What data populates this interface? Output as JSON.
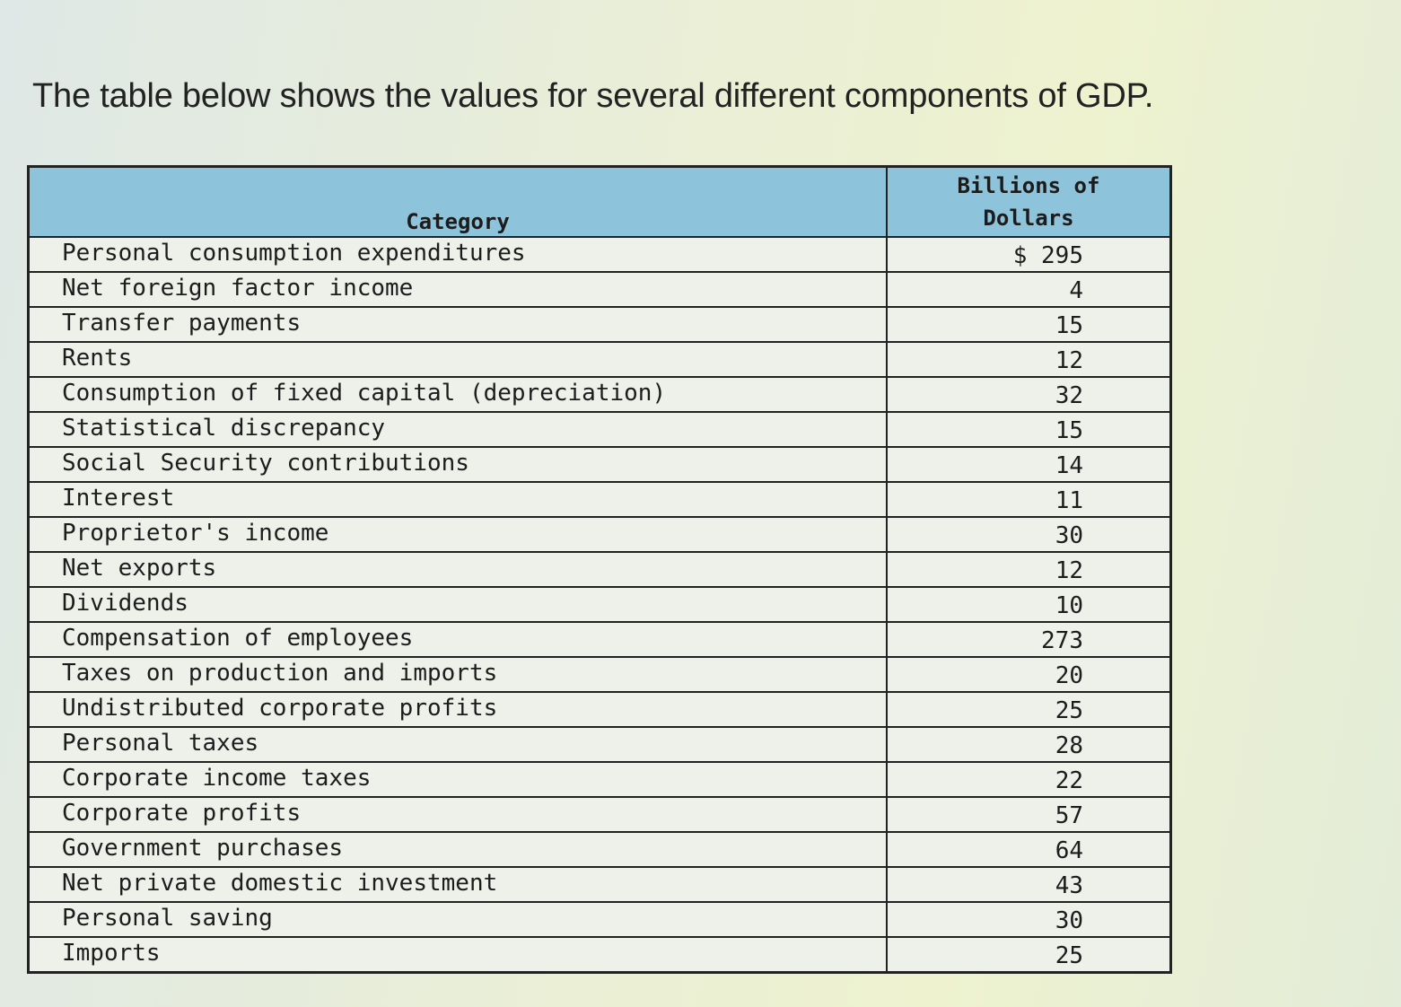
{
  "intro_text": "The table below shows the values for several different components of GDP.",
  "table": {
    "header_category": "Category",
    "header_value_line1": "Billions of",
    "header_value_line2": "Dollars",
    "rows": [
      {
        "category": "Personal consumption expenditures",
        "value": "$ 295"
      },
      {
        "category": "Net foreign factor income",
        "value": "4"
      },
      {
        "category": "Transfer payments",
        "value": "15"
      },
      {
        "category": "Rents",
        "value": "12"
      },
      {
        "category": "Consumption of fixed capital (depreciation)",
        "value": "32"
      },
      {
        "category": "Statistical discrepancy",
        "value": "15"
      },
      {
        "category": "Social Security contributions",
        "value": "14"
      },
      {
        "category": "Interest",
        "value": "11"
      },
      {
        "category": "Proprietor's income",
        "value": "30"
      },
      {
        "category": "Net exports",
        "value": "12"
      },
      {
        "category": "Dividends",
        "value": "10"
      },
      {
        "category": "Compensation of employees",
        "value": "273"
      },
      {
        "category": "Taxes on production and imports",
        "value": "20"
      },
      {
        "category": "Undistributed corporate profits",
        "value": "25"
      },
      {
        "category": "Personal taxes",
        "value": "28"
      },
      {
        "category": "Corporate income taxes",
        "value": "22"
      },
      {
        "category": "Corporate profits",
        "value": "57"
      },
      {
        "category": "Government purchases",
        "value": "64"
      },
      {
        "category": "Net private domestic investment",
        "value": "43"
      },
      {
        "category": "Personal saving",
        "value": "30"
      },
      {
        "category": "Imports",
        "value": "25"
      }
    ]
  },
  "colors": {
    "header_background": "#8ec3dc",
    "table_background": "#eef0ea",
    "border": "#222222"
  }
}
